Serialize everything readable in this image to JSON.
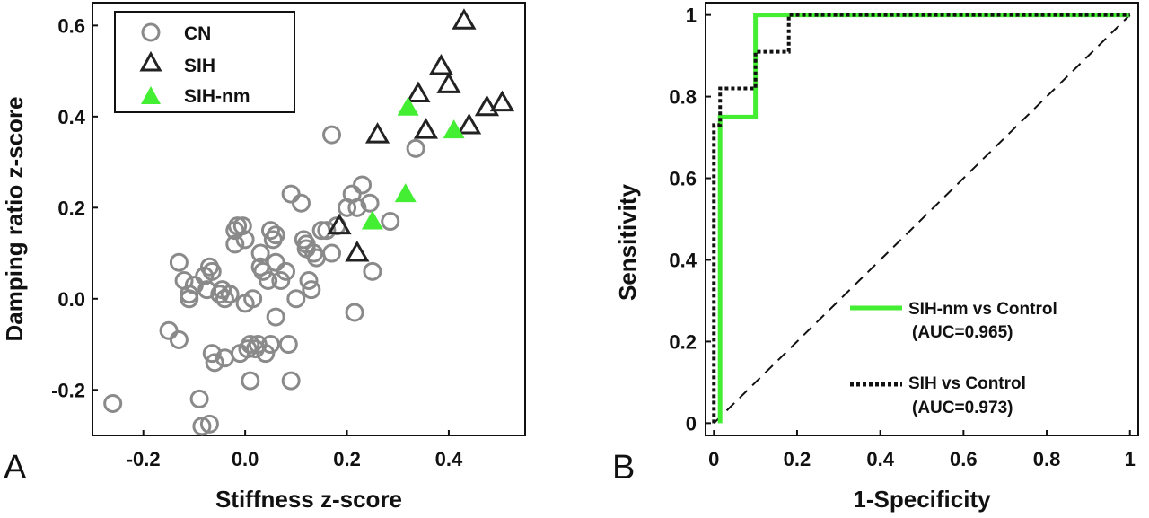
{
  "chart_data": [
    {
      "type": "scatter",
      "panel": "A",
      "xlabel": "Stiffness z-score",
      "ylabel": "Damping ratio z-score",
      "xlim": [
        -0.3,
        0.55
      ],
      "ylim": [
        -0.3,
        0.65
      ],
      "xticks": [
        "-0.2",
        "0.0",
        "0.2",
        "0.4"
      ],
      "xtick_values": [
        -0.2,
        0.0,
        0.2,
        0.4
      ],
      "yticks": [
        "-0.2",
        "0.0",
        "0.2",
        "0.4",
        "0.6"
      ],
      "ytick_values": [
        -0.2,
        0.0,
        0.2,
        0.4,
        0.6
      ],
      "legend_position": "top-left",
      "series": [
        {
          "name": "CN",
          "marker": "open-circle",
          "color": "#8a8a8a",
          "points": [
            [
              -0.26,
              -0.23
            ],
            [
              -0.15,
              -0.07
            ],
            [
              -0.13,
              -0.09
            ],
            [
              -0.13,
              0.08
            ],
            [
              -0.12,
              0.04
            ],
            [
              -0.11,
              0.0
            ],
            [
              -0.1,
              0.03
            ],
            [
              -0.11,
              0.01
            ],
            [
              -0.09,
              -0.22
            ],
            [
              -0.085,
              -0.28
            ],
            [
              -0.08,
              0.05
            ],
            [
              -0.075,
              0.02
            ],
            [
              -0.07,
              0.07
            ],
            [
              -0.065,
              0.06
            ],
            [
              -0.07,
              -0.275
            ],
            [
              -0.065,
              -0.12
            ],
            [
              -0.06,
              -0.14
            ],
            [
              -0.05,
              0.01
            ],
            [
              -0.045,
              0.02
            ],
            [
              -0.04,
              0.0
            ],
            [
              -0.04,
              -0.13
            ],
            [
              -0.03,
              0.01
            ],
            [
              -0.02,
              0.12
            ],
            [
              -0.02,
              0.15
            ],
            [
              -0.015,
              0.16
            ],
            [
              -0.01,
              -0.12
            ],
            [
              -0.005,
              0.16
            ],
            [
              0.0,
              0.13
            ],
            [
              0.0,
              -0.01
            ],
            [
              0.005,
              -0.11
            ],
            [
              0.01,
              -0.1
            ],
            [
              0.015,
              0.0
            ],
            [
              0.01,
              -0.18
            ],
            [
              0.02,
              -0.11
            ],
            [
              0.025,
              -0.1
            ],
            [
              0.03,
              0.07
            ],
            [
              0.03,
              0.1
            ],
            [
              0.035,
              0.06
            ],
            [
              0.04,
              -0.12
            ],
            [
              0.045,
              0.04
            ],
            [
              0.05,
              -0.1
            ],
            [
              0.05,
              0.15
            ],
            [
              0.055,
              0.13
            ],
            [
              0.06,
              0.14
            ],
            [
              0.06,
              0.08
            ],
            [
              0.06,
              -0.04
            ],
            [
              0.07,
              0.04
            ],
            [
              0.08,
              0.06
            ],
            [
              0.085,
              -0.1
            ],
            [
              0.09,
              -0.18
            ],
            [
              0.09,
              0.23
            ],
            [
              0.1,
              0.0
            ],
            [
              0.11,
              0.21
            ],
            [
              0.115,
              0.13
            ],
            [
              0.12,
              0.11
            ],
            [
              0.12,
              0.12
            ],
            [
              0.125,
              0.04
            ],
            [
              0.13,
              0.02
            ],
            [
              0.135,
              0.1
            ],
            [
              0.14,
              0.09
            ],
            [
              0.15,
              0.15
            ],
            [
              0.16,
              0.15
            ],
            [
              0.17,
              0.36
            ],
            [
              0.17,
              0.1
            ],
            [
              0.18,
              0.16
            ],
            [
              0.2,
              0.2
            ],
            [
              0.21,
              0.23
            ],
            [
              0.215,
              -0.03
            ],
            [
              0.22,
              0.2
            ],
            [
              0.23,
              0.25
            ],
            [
              0.245,
              0.21
            ],
            [
              0.25,
              0.06
            ],
            [
              0.285,
              0.17
            ],
            [
              0.335,
              0.33
            ]
          ]
        },
        {
          "name": "SIH",
          "marker": "open-triangle",
          "color": "#222222",
          "points": [
            [
              0.185,
              0.16
            ],
            [
              0.22,
              0.1
            ],
            [
              0.26,
              0.36
            ],
            [
              0.34,
              0.45
            ],
            [
              0.355,
              0.37
            ],
            [
              0.385,
              0.51
            ],
            [
              0.4,
              0.47
            ],
            [
              0.43,
              0.61
            ],
            [
              0.44,
              0.38
            ],
            [
              0.475,
              0.42
            ],
            [
              0.505,
              0.43
            ]
          ]
        },
        {
          "name": "SIH-nm",
          "marker": "filled-triangle",
          "color": "#44ee33",
          "points": [
            [
              0.25,
              0.17
            ],
            [
              0.315,
              0.23
            ],
            [
              0.32,
              0.42
            ],
            [
              0.41,
              0.37
            ]
          ]
        }
      ]
    },
    {
      "type": "line",
      "panel": "B",
      "xlabel": "1-Specificity",
      "ylabel": "Sensitivity",
      "xlim": [
        -0.02,
        1.02
      ],
      "ylim": [
        -0.03,
        1.03
      ],
      "xticks": [
        "0",
        "0.2",
        "0.4",
        "0.6",
        "0.8",
        "1"
      ],
      "xtick_values": [
        0,
        0.2,
        0.4,
        0.6,
        0.8,
        1
      ],
      "yticks": [
        "0",
        "0.2",
        "0.4",
        "0.6",
        "0.8",
        "1"
      ],
      "ytick_values": [
        0,
        0.2,
        0.4,
        0.6,
        0.8,
        1
      ],
      "legend_position": "bottom-right",
      "series": [
        {
          "name": "SIH-nm vs Control",
          "note": "(AUC=0.965)",
          "style": "solid",
          "color": "#44ee33",
          "x": [
            0.015,
            0.015,
            0.1,
            0.1,
            1.0
          ],
          "y": [
            0.0,
            0.75,
            0.75,
            1.0,
            1.0
          ]
        },
        {
          "name": "SIH vs Control",
          "note": "(AUC=0.973)",
          "style": "dotted",
          "color": "#111111",
          "x": [
            0.0,
            0.0,
            0.015,
            0.015,
            0.1,
            0.1,
            0.13,
            0.13,
            0.18,
            0.18,
            1.0
          ],
          "y": [
            0.0,
            0.73,
            0.73,
            0.82,
            0.82,
            0.91,
            0.91,
            0.91,
            0.91,
            1.0,
            1.0
          ]
        },
        {
          "name": "",
          "style": "dashed",
          "color": "#111111",
          "x": [
            0.0,
            1.0
          ],
          "y": [
            0.0,
            1.0
          ]
        }
      ]
    }
  ]
}
